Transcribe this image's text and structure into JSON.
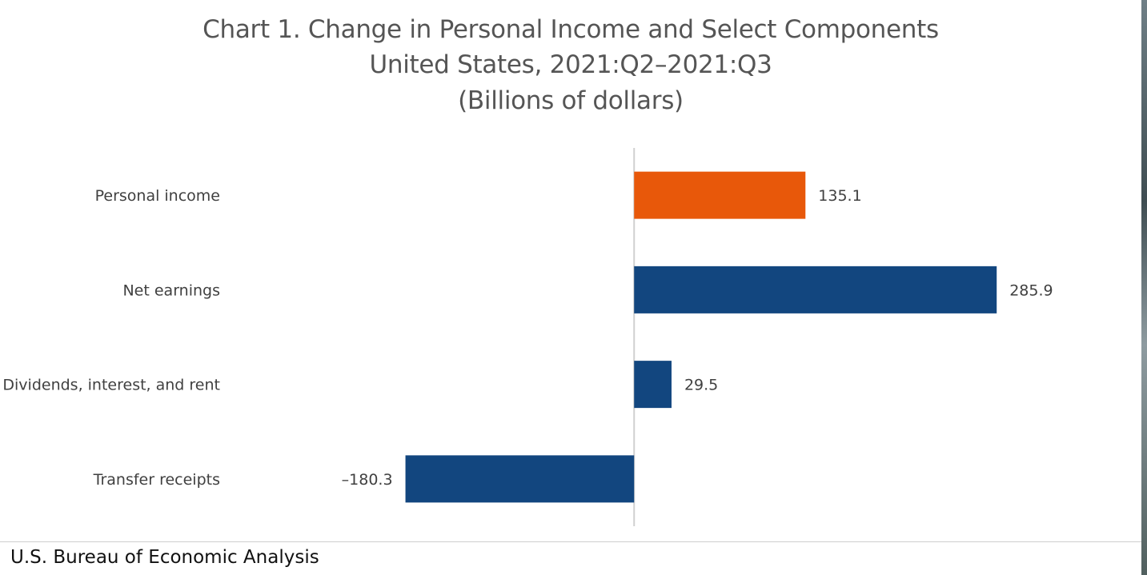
{
  "chart_data": {
    "type": "bar",
    "orientation": "horizontal",
    "title": "Chart 1. Change in Personal Income and Select Components",
    "subtitle": "United States, 2021:Q2–2021:Q3",
    "units": "(Billions of dollars)",
    "categories": [
      "Personal income",
      "Net earnings",
      "Dividends, interest, and rent",
      "Transfer receipts"
    ],
    "values": [
      135.1,
      285.9,
      29.5,
      -180.3
    ],
    "value_labels": [
      "135.1",
      "285.9",
      "29.5",
      "–180.3"
    ],
    "bar_colors": [
      "#e8580a",
      "#12467f",
      "#12467f",
      "#12467f"
    ],
    "xlim": [
      -500,
      400
    ],
    "grid": false,
    "legend": "none"
  },
  "footer": {
    "source": "U.S. Bureau of Economic Analysis"
  },
  "colors": {
    "highlight": "#e8580a",
    "primary": "#12467f",
    "axis": "#d0d0d0"
  }
}
